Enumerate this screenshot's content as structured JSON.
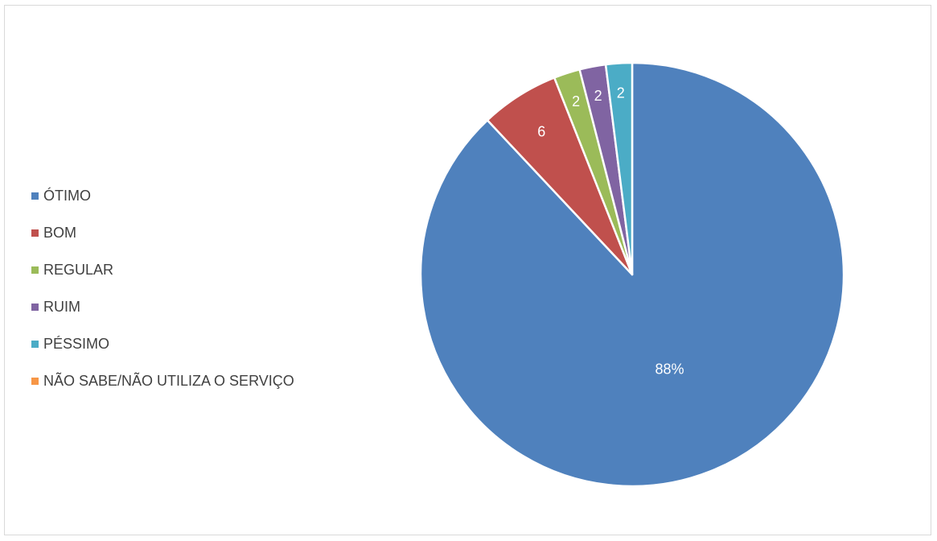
{
  "chart_data": {
    "type": "pie",
    "title": "",
    "legend_position": "left",
    "start_angle_deg": 0,
    "direction": "clockwise",
    "slices": [
      {
        "name": "ÓTIMO",
        "value": 88,
        "label": "88%",
        "color": "#4f81bd"
      },
      {
        "name": "BOM",
        "value": 6,
        "label": "6",
        "color": "#c0504d"
      },
      {
        "name": "REGULAR",
        "value": 2,
        "label": "2",
        "color": "#9bbb59"
      },
      {
        "name": "RUIM",
        "value": 2,
        "label": "2",
        "color": "#8064a2"
      },
      {
        "name": "PÉSSIMO",
        "value": 2,
        "label": "2",
        "color": "#4bacc6"
      },
      {
        "name": "NÃO SABE/NÃO UTILIZA O SERVIÇO",
        "value": 0,
        "label": "",
        "color": "#f79646"
      }
    ]
  }
}
